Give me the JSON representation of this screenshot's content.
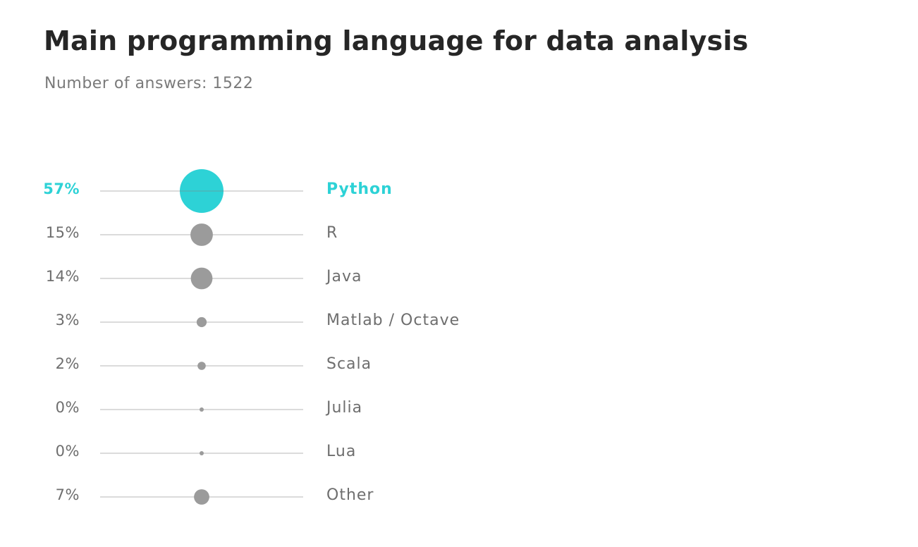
{
  "title": "Main programming language for data analysis",
  "subtitle": "Number of answers: 1522",
  "chart_data": {
    "type": "scatter",
    "title": "Main programming language for data analysis",
    "subtitle": "Number of answers: 1522",
    "categories": [
      "Python",
      "R",
      "Java",
      "Matlab / Octave",
      "Scala",
      "Julia",
      "Lua",
      "Other"
    ],
    "values": [
      57,
      15,
      14,
      3,
      2,
      0,
      0,
      7
    ],
    "value_labels": [
      "57%",
      "15%",
      "14%",
      "3%",
      "2%",
      "0%",
      "0%",
      "7%"
    ],
    "highlight": "Python",
    "grid": false,
    "legend": "none"
  },
  "colors": {
    "highlight": "#2dd2d6",
    "dot": "#9b9b9b",
    "line": "#cfcfcf",
    "text": "#6e6e6e",
    "title": "#262626"
  }
}
